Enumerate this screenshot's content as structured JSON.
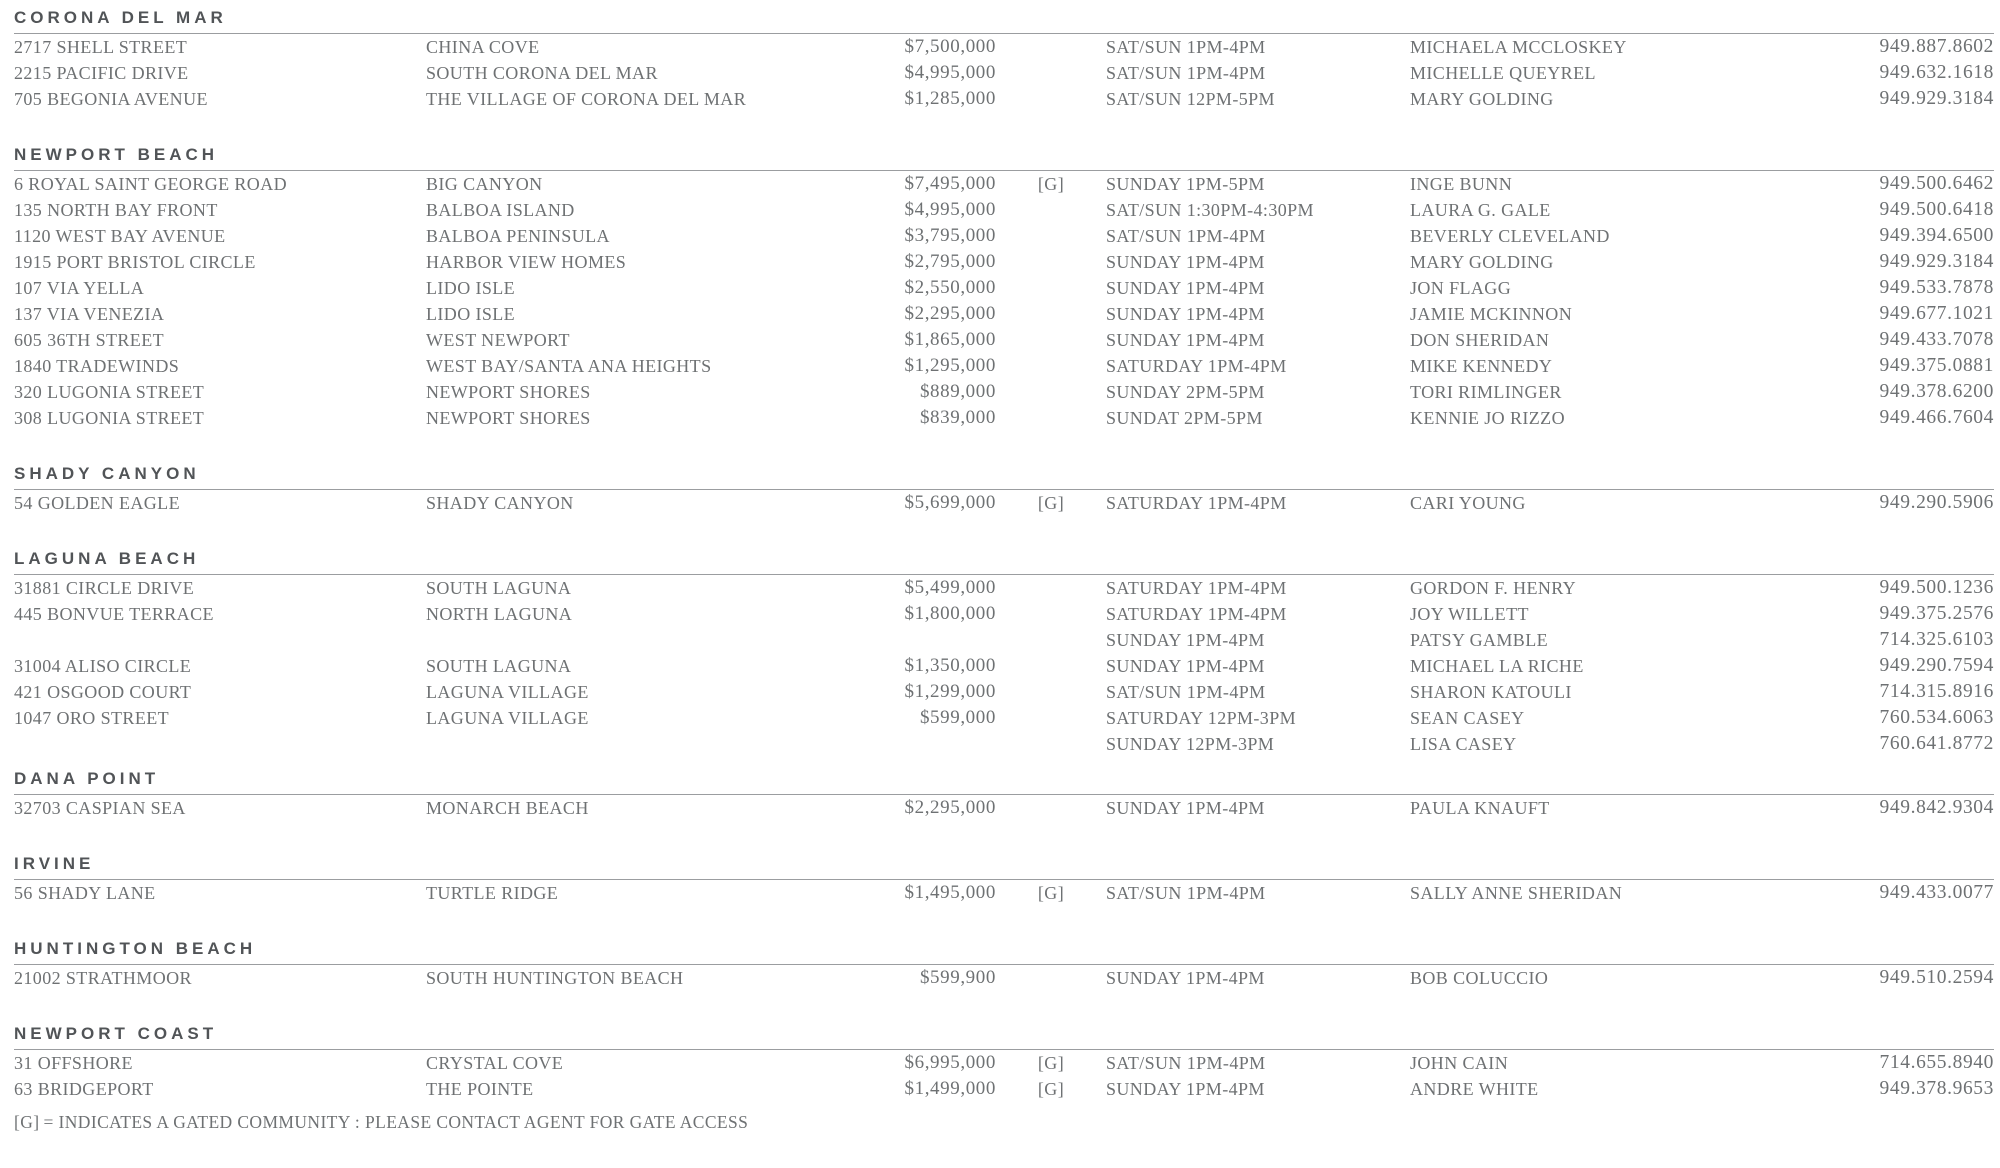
{
  "gated_symbol": "[G]",
  "legend": {
    "symbol": "[G]",
    "text": "= INDICATES A GATED COMMUNITY : PLEASE CONTACT AGENT FOR GATE ACCESS"
  },
  "colors": {
    "header_text": "#515457",
    "body_text": "#6e7173",
    "rule_line": "#9b9da0",
    "background": "#ffffff"
  },
  "sections": [
    {
      "name": "CORONA DEL MAR",
      "tight": false,
      "rows": [
        {
          "address": "2717 SHELL STREET",
          "neighborhood": "CHINA COVE",
          "price": "$7,500,000",
          "gated": false,
          "time": "SAT/SUN 1PM-4PM",
          "agent": "MICHAELA MCCLOSKEY",
          "phone": "949.887.8602"
        },
        {
          "address": "2215 PACIFIC DRIVE",
          "neighborhood": "SOUTH CORONA DEL MAR",
          "price": "$4,995,000",
          "gated": false,
          "time": "SAT/SUN 1PM-4PM",
          "agent": "MICHELLE QUEYREL",
          "phone": "949.632.1618"
        },
        {
          "address": "705 BEGONIA AVENUE",
          "neighborhood": "THE VILLAGE OF CORONA DEL MAR",
          "price": "$1,285,000",
          "gated": false,
          "time": "SAT/SUN 12PM-5PM",
          "agent": "MARY GOLDING",
          "phone": "949.929.3184"
        }
      ]
    },
    {
      "name": "NEWPORT BEACH",
      "tight": false,
      "rows": [
        {
          "address": "6 ROYAL SAINT GEORGE ROAD",
          "neighborhood": "BIG CANYON",
          "price": "$7,495,000",
          "gated": true,
          "time": "SUNDAY 1PM-5PM",
          "agent": "INGE BUNN",
          "phone": "949.500.6462"
        },
        {
          "address": "135 NORTH BAY FRONT",
          "neighborhood": "BALBOA ISLAND",
          "price": "$4,995,000",
          "gated": false,
          "time": "SAT/SUN 1:30PM-4:30PM",
          "agent": "LAURA G. GALE",
          "phone": "949.500.6418"
        },
        {
          "address": "1120 WEST BAY AVENUE",
          "neighborhood": "BALBOA PENINSULA",
          "price": "$3,795,000",
          "gated": false,
          "time": "SAT/SUN 1PM-4PM",
          "agent": "BEVERLY CLEVELAND",
          "phone": "949.394.6500"
        },
        {
          "address": "1915 PORT BRISTOL CIRCLE",
          "neighborhood": "HARBOR VIEW HOMES",
          "price": "$2,795,000",
          "gated": false,
          "time": "SUNDAY 1PM-4PM",
          "agent": "MARY GOLDING",
          "phone": "949.929.3184"
        },
        {
          "address": "107 VIA YELLA",
          "neighborhood": "LIDO ISLE",
          "price": "$2,550,000",
          "gated": false,
          "time": "SUNDAY 1PM-4PM",
          "agent": "JON FLAGG",
          "phone": "949.533.7878"
        },
        {
          "address": "137 VIA VENEZIA",
          "neighborhood": "LIDO ISLE",
          "price": "$2,295,000",
          "gated": false,
          "time": "SUNDAY 1PM-4PM",
          "agent": "JAMIE MCKINNON",
          "phone": "949.677.1021"
        },
        {
          "address": "605 36TH STREET",
          "neighborhood": "WEST NEWPORT",
          "price": "$1,865,000",
          "gated": false,
          "time": "SUNDAY 1PM-4PM",
          "agent": "DON SHERIDAN",
          "phone": "949.433.7078"
        },
        {
          "address": "1840 TRADEWINDS",
          "neighborhood": "WEST BAY/SANTA ANA HEIGHTS",
          "price": "$1,295,000",
          "gated": false,
          "time": "SATURDAY 1PM-4PM",
          "agent": "MIKE KENNEDY",
          "phone": "949.375.0881"
        },
        {
          "address": "320 LUGONIA STREET",
          "neighborhood": "NEWPORT SHORES",
          "price": "$889,000",
          "gated": false,
          "time": "SUNDAY 2PM-5PM",
          "agent": "TORI RIMLINGER",
          "phone": "949.378.6200"
        },
        {
          "address": "308 LUGONIA STREET",
          "neighborhood": "NEWPORT SHORES",
          "price": "$839,000",
          "gated": false,
          "time": "SUNDAT 2PM-5PM",
          "agent": "KENNIE JO RIZZO",
          "phone": "949.466.7604"
        }
      ]
    },
    {
      "name": "SHADY CANYON",
      "tight": false,
      "rows": [
        {
          "address": "54 GOLDEN EAGLE",
          "neighborhood": "SHADY CANYON",
          "price": "$5,699,000",
          "gated": true,
          "time": "SATURDAY 1PM-4PM",
          "agent": "CARI YOUNG",
          "phone": "949.290.5906"
        }
      ]
    },
    {
      "name": "LAGUNA BEACH",
      "tight": false,
      "rows": [
        {
          "address": "31881 CIRCLE DRIVE",
          "neighborhood": "SOUTH LAGUNA",
          "price": "$5,499,000",
          "gated": false,
          "time": "SATURDAY 1PM-4PM",
          "agent": "GORDON F. HENRY",
          "phone": "949.500.1236"
        },
        {
          "address": "445 BONVUE TERRACE",
          "neighborhood": "NORTH LAGUNA",
          "price": "$1,800,000",
          "gated": false,
          "time": "SATURDAY 1PM-4PM",
          "agent": "JOY WILLETT",
          "phone": "949.375.2576"
        },
        {
          "address": "",
          "neighborhood": "",
          "price": "",
          "gated": false,
          "time": "SUNDAY 1PM-4PM",
          "agent": "PATSY GAMBLE",
          "phone": "714.325.6103"
        },
        {
          "address": "31004 ALISO CIRCLE",
          "neighborhood": "SOUTH LAGUNA",
          "price": "$1,350,000",
          "gated": false,
          "time": "SUNDAY 1PM-4PM",
          "agent": "MICHAEL LA RICHE",
          "phone": "949.290.7594"
        },
        {
          "address": "421 OSGOOD COURT",
          "neighborhood": "LAGUNA VILLAGE",
          "price": "$1,299,000",
          "gated": false,
          "time": "SAT/SUN 1PM-4PM",
          "agent": "SHARON KATOULI",
          "phone": "714.315.8916"
        },
        {
          "address": "1047 ORO STREET",
          "neighborhood": "LAGUNA VILLAGE",
          "price": "$599,000",
          "gated": false,
          "time": "SATURDAY 12PM-3PM",
          "agent": "SEAN CASEY",
          "phone": "760.534.6063"
        },
        {
          "address": "",
          "neighborhood": "",
          "price": "",
          "gated": false,
          "time": "SUNDAY 12PM-3PM",
          "agent": "LISA CASEY",
          "phone": "760.641.8772"
        }
      ]
    },
    {
      "name": "DANA POINT",
      "tight": true,
      "rows": [
        {
          "address": "32703 CASPIAN SEA",
          "neighborhood": "MONARCH BEACH",
          "price": "$2,295,000",
          "gated": false,
          "time": "SUNDAY 1PM-4PM",
          "agent": "PAULA KNAUFT",
          "phone": "949.842.9304"
        }
      ]
    },
    {
      "name": "IRVINE",
      "tight": false,
      "rows": [
        {
          "address": "56 SHADY LANE",
          "neighborhood": "TURTLE RIDGE",
          "price": "$1,495,000",
          "gated": true,
          "time": "SAT/SUN 1PM-4PM",
          "agent": "SALLY ANNE SHERIDAN",
          "phone": "949.433.0077"
        }
      ]
    },
    {
      "name": "HUNTINGTON BEACH",
      "tight": false,
      "rows": [
        {
          "address": "21002 STRATHMOOR",
          "neighborhood": "SOUTH HUNTINGTON BEACH",
          "price": "$599,900",
          "gated": false,
          "time": "SUNDAY 1PM-4PM",
          "agent": "BOB COLUCCIO",
          "phone": "949.510.2594"
        }
      ]
    },
    {
      "name": "NEWPORT COAST",
      "tight": false,
      "rows": [
        {
          "address": "31 OFFSHORE",
          "neighborhood": "CRYSTAL COVE",
          "price": "$6,995,000",
          "gated": true,
          "time": "SAT/SUN 1PM-4PM",
          "agent": "JOHN CAIN",
          "phone": "714.655.8940"
        },
        {
          "address": "63 BRIDGEPORT",
          "neighborhood": "THE POINTE",
          "price": "$1,499,000",
          "gated": true,
          "time": "SUNDAY 1PM-4PM",
          "agent": "ANDRE WHITE",
          "phone": "949.378.9653"
        }
      ]
    }
  ]
}
